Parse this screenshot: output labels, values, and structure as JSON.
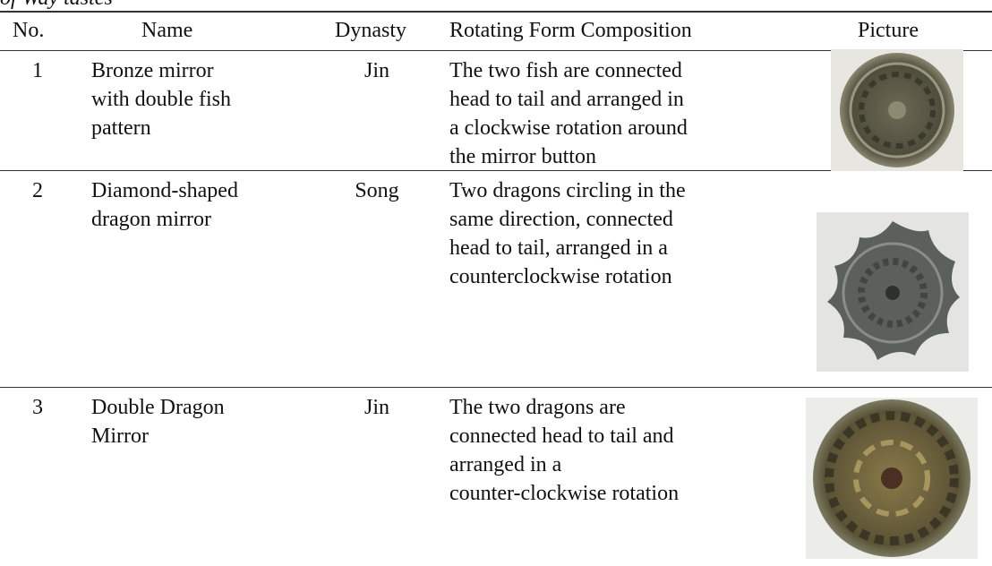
{
  "caption": "of Way tastes",
  "table": {
    "headers": [
      "No.",
      "Name",
      "Dynasty",
      "Rotating Form Composition",
      "Picture"
    ],
    "rows": [
      {
        "no": "1",
        "name": [
          "Bronze mirror",
          "with double fish",
          "pattern"
        ],
        "dynasty": "Jin",
        "composition": [
          "The two fish are connected",
          "head to tail and arranged in",
          "a clockwise rotation around",
          "the mirror button"
        ]
      },
      {
        "no": "2",
        "name": [
          "Diamond-shaped",
          "dragon mirror"
        ],
        "dynasty": "Song",
        "composition": [
          "Two dragons circling in the",
          "same direction, connected",
          "head to tail, arranged in a",
          "counterclockwise rotation"
        ]
      },
      {
        "no": "3",
        "name": [
          "Double Dragon",
          "Mirror"
        ],
        "dynasty": "Jin",
        "composition": [
          "The two dragons are",
          "connected head to tail and",
          "arranged in a",
          "counter-clockwise rotation"
        ]
      }
    ]
  }
}
